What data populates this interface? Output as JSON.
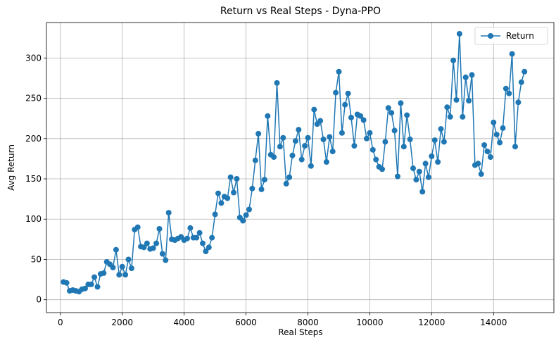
{
  "chart_data": {
    "type": "line",
    "title": "Return vs Real Steps - Dyna-PPO",
    "xlabel": "Real Steps",
    "ylabel": "Avg Return",
    "xlim": [
      -450,
      15950
    ],
    "ylim": [
      -16,
      344
    ],
    "xticks": [
      0,
      2000,
      4000,
      6000,
      8000,
      10000,
      12000,
      14000
    ],
    "yticks": [
      0,
      50,
      100,
      150,
      200,
      250,
      300
    ],
    "grid": true,
    "legend": "top-right",
    "series": [
      {
        "name": "Return",
        "color": "#1f77b4",
        "marker": "circle",
        "x": [
          100,
          200,
          300,
          400,
          500,
          600,
          700,
          800,
          900,
          1000,
          1100,
          1200,
          1300,
          1400,
          1500,
          1600,
          1700,
          1800,
          1900,
          2000,
          2100,
          2200,
          2300,
          2400,
          2500,
          2600,
          2700,
          2800,
          2900,
          3000,
          3100,
          3200,
          3300,
          3400,
          3500,
          3600,
          3700,
          3800,
          3900,
          4000,
          4100,
          4200,
          4300,
          4400,
          4500,
          4600,
          4700,
          4800,
          4900,
          5000,
          5100,
          5200,
          5300,
          5400,
          5500,
          5600,
          5700,
          5800,
          5900,
          6000,
          6100,
          6200,
          6300,
          6400,
          6500,
          6600,
          6700,
          6800,
          6900,
          7000,
          7100,
          7200,
          7300,
          7400,
          7500,
          7600,
          7700,
          7800,
          7900,
          8000,
          8100,
          8200,
          8300,
          8400,
          8500,
          8600,
          8700,
          8800,
          8900,
          9000,
          9100,
          9200,
          9300,
          9400,
          9500,
          9600,
          9700,
          9800,
          9900,
          10000,
          10100,
          10200,
          10300,
          10400,
          10500,
          10600,
          10700,
          10800,
          10900,
          11000,
          11100,
          11200,
          11300,
          11400,
          11500,
          11600,
          11700,
          11800,
          11900,
          12000,
          12100,
          12200,
          12300,
          12400,
          12500,
          12600,
          12700,
          12800,
          12900,
          13000,
          13100,
          13200,
          13300,
          13400,
          13500,
          13600,
          13700,
          13800,
          13900,
          14000,
          14100,
          14200,
          14300,
          14400,
          14500,
          14600,
          14700,
          14800,
          14900,
          15000
        ],
        "values": [
          22,
          21,
          11,
          12,
          11,
          10,
          13,
          14,
          19,
          19,
          28,
          16,
          32,
          33,
          47,
          44,
          40,
          62,
          31,
          41,
          31,
          50,
          39,
          87,
          90,
          66,
          65,
          70,
          63,
          64,
          70,
          88,
          57,
          49,
          108,
          75,
          74,
          76,
          78,
          74,
          76,
          89,
          77,
          77,
          83,
          70,
          60,
          65,
          77,
          106,
          132,
          120,
          128,
          126,
          152,
          133,
          150,
          102,
          98,
          105,
          112,
          138,
          173,
          206,
          137,
          149,
          228,
          180,
          177,
          269,
          190,
          201,
          144,
          152,
          179,
          197,
          211,
          174,
          191,
          201,
          166,
          236,
          218,
          222,
          199,
          171,
          202,
          184,
          257,
          283,
          207,
          242,
          256,
          226,
          191,
          230,
          228,
          223,
          200,
          207,
          186,
          174,
          165,
          162,
          196,
          238,
          232,
          210,
          153,
          244,
          190,
          229,
          199,
          163,
          149,
          159,
          134,
          169,
          152,
          178,
          198,
          171,
          212,
          196,
          239,
          227,
          297,
          248,
          330,
          227,
          276,
          247,
          279,
          167,
          169,
          156,
          192,
          184,
          177,
          220,
          205,
          195,
          213,
          262,
          256,
          305,
          190,
          245,
          270,
          283
        ]
      }
    ]
  }
}
